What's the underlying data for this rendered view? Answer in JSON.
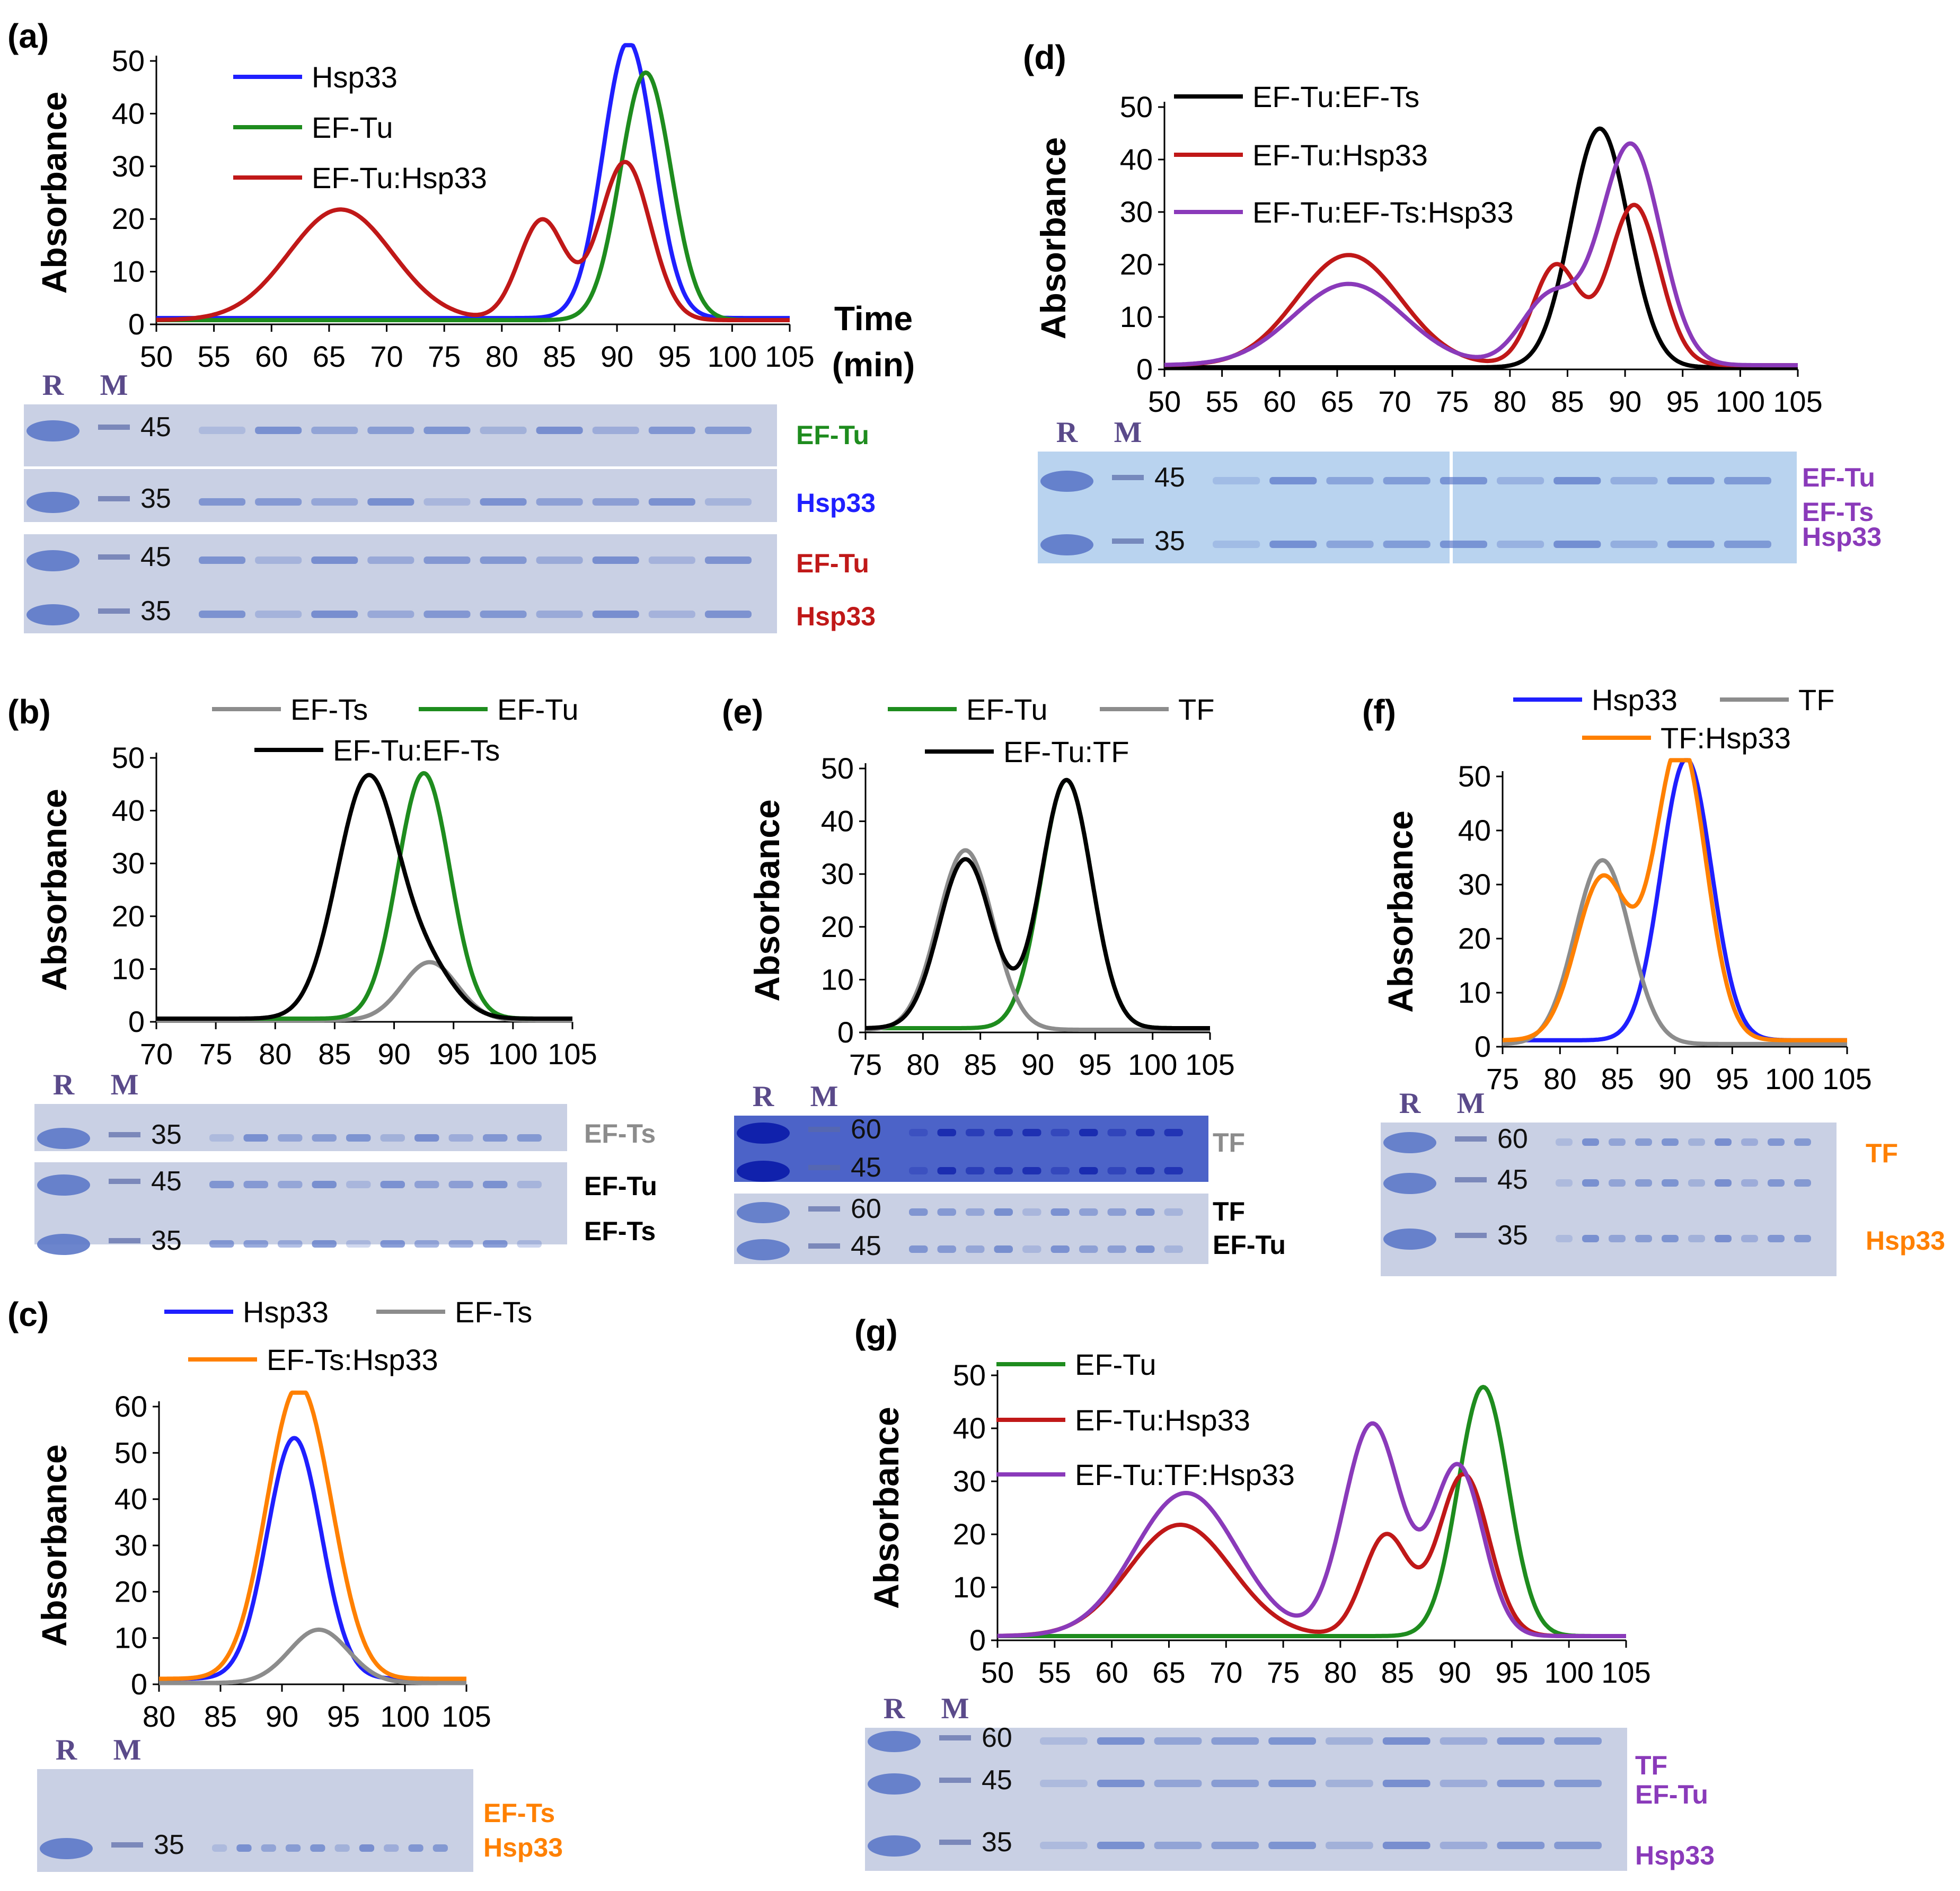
{
  "colors": {
    "Hsp33": "#1f1fff",
    "EF-Tu": "#1e8c1e",
    "EF-Ts": "#8c8c8c",
    "TF": "#8c8c8c",
    "EF-Tu:Hsp33": "#c01818",
    "EF-Tu:EF-Ts": "#000000",
    "EF-Tu:EF-Ts:Hsp33": "#8a3aba",
    "EF-Tu:TF": "#000000",
    "TF:Hsp33": "#ff8000",
    "EF-Ts:Hsp33": "#ff8000",
    "EF-Tu:TF:Hsp33": "#8a3aba"
  },
  "ylabel": "Absorbance",
  "chart_data": [
    {
      "id": "a",
      "label": "(a)",
      "type": "line",
      "xlim": [
        50,
        105
      ],
      "ylim": [
        0,
        50
      ],
      "xticks": [
        "50",
        "55",
        "60",
        "65",
        "70",
        "75",
        "80",
        "85",
        "90",
        "95",
        "100",
        "105"
      ],
      "yticks": [
        "0",
        "10",
        "20",
        "30",
        "40",
        "50"
      ],
      "xtitle": [
        "Time",
        "(min)"
      ],
      "series": [
        {
          "name": "Hsp33",
          "color": "#1f1fff",
          "baseline": 1.2,
          "peaks": [
            [
              91,
              52.5,
              2.2
            ]
          ]
        },
        {
          "name": "EF-Tu",
          "color": "#1e8c1e",
          "baseline": 0.8,
          "peaks": [
            [
              92.5,
              47,
              2.2
            ]
          ]
        },
        {
          "name": "EF-Tu:Hsp33",
          "color": "#c01818",
          "baseline": 0.8,
          "peaks": [
            [
              66,
              21,
              4.5
            ],
            [
              83.5,
              19,
              2.0
            ],
            [
              90.7,
              30,
              2.2
            ]
          ]
        }
      ],
      "gels": [
        {
          "labels": [
            {
              "t": "EF-Tu",
              "c": "#1e8c1e"
            }
          ],
          "mw": [
            "45"
          ]
        },
        {
          "labels": [
            {
              "t": "Hsp33",
              "c": "#1f1fff"
            }
          ],
          "mw": [
            "35"
          ]
        },
        {
          "labels": [
            {
              "t": "EF-Tu",
              "c": "#c01818"
            },
            {
              "t": "Hsp33",
              "c": "#c01818"
            }
          ],
          "mw": [
            "45",
            "35"
          ]
        }
      ]
    },
    {
      "id": "b",
      "label": "(b)",
      "type": "line",
      "xlim": [
        70,
        105
      ],
      "ylim": [
        0,
        50
      ],
      "xticks": [
        "70",
        "75",
        "80",
        "85",
        "90",
        "95",
        "100",
        "105"
      ],
      "yticks": [
        "0",
        "10",
        "20",
        "30",
        "40",
        "50"
      ],
      "series": [
        {
          "name": "EF-Ts",
          "color": "#8c8c8c",
          "baseline": 0.3,
          "peaks": [
            [
              93,
              11,
              2.3
            ]
          ]
        },
        {
          "name": "EF-Tu",
          "color": "#1e8c1e",
          "baseline": 0.6,
          "peaks": [
            [
              92.5,
              46.5,
              2.2
            ]
          ]
        },
        {
          "name": "EF-Tu:EF-Ts",
          "color": "#000000",
          "baseline": 0.6,
          "peaks": [
            [
              87.8,
              45.5,
              2.6
            ],
            [
              93,
              8,
              2.3
            ]
          ]
        }
      ],
      "gels": [
        {
          "labels": [
            {
              "t": "EF-Ts",
              "c": "#8c8c8c"
            }
          ],
          "mw": [
            "35"
          ]
        },
        {
          "labels": [
            {
              "t": "EF-Tu",
              "c": "#000000"
            },
            {
              "t": "EF-Ts",
              "c": "#000000"
            }
          ],
          "mw": [
            "45",
            "35"
          ]
        }
      ]
    },
    {
      "id": "c",
      "label": "(c)",
      "type": "line",
      "xlim": [
        80,
        105
      ],
      "ylim": [
        0,
        60
      ],
      "xticks": [
        "80",
        "85",
        "90",
        "95",
        "100",
        "105"
      ],
      "yticks": [
        "0",
        "10",
        "20",
        "30",
        "40",
        "50",
        "60"
      ],
      "series": [
        {
          "name": "Hsp33",
          "color": "#1f1fff",
          "baseline": 1.2,
          "peaks": [
            [
              91,
              52,
              2.2
            ]
          ]
        },
        {
          "name": "EF-Ts",
          "color": "#8c8c8c",
          "baseline": 0.3,
          "peaks": [
            [
              93,
              11.5,
              2.4
            ]
          ]
        },
        {
          "name": "EF-Ts:Hsp33",
          "color": "#ff8000",
          "baseline": 1.2,
          "peaks": [
            [
              91.2,
              61,
              2.5
            ],
            [
              94,
              6,
              2
            ]
          ]
        }
      ],
      "gels": [
        {
          "labels": [
            {
              "t": "EF-Ts",
              "c": "#ff8000"
            },
            {
              "t": "Hsp33",
              "c": "#ff8000"
            }
          ],
          "mw": [
            "35"
          ]
        }
      ]
    },
    {
      "id": "d",
      "label": "(d)",
      "type": "line",
      "xlim": [
        50,
        105
      ],
      "ylim": [
        0,
        50
      ],
      "xticks": [
        "50",
        "55",
        "60",
        "65",
        "70",
        "75",
        "80",
        "85",
        "90",
        "95",
        "100",
        "105"
      ],
      "yticks": [
        "0",
        "10",
        "20",
        "30",
        "40",
        "50"
      ],
      "series": [
        {
          "name": "EF-Tu:EF-Ts",
          "color": "#000000",
          "baseline": 0.4,
          "peaks": [
            [
              87.8,
              45.5,
              2.5
            ]
          ]
        },
        {
          "name": "EF-Tu:Hsp33",
          "color": "#c01818",
          "baseline": 0.8,
          "peaks": [
            [
              66,
              21,
              4.5
            ],
            [
              84,
              19,
              2.0
            ],
            [
              90.8,
              30.5,
              2.2
            ]
          ]
        },
        {
          "name": "EF-Tu:EF-Ts:Hsp33",
          "color": "#8a3aba",
          "baseline": 0.8,
          "peaks": [
            [
              66,
              15.5,
              4.8
            ],
            [
              83.5,
              13,
              2.5
            ],
            [
              90.5,
              42,
              2.6
            ]
          ]
        }
      ],
      "gels": [
        {
          "labels": [
            {
              "t": "EF-Tu",
              "c": "#8a3aba"
            },
            {
              "t": "EF-Ts",
              "c": "#8a3aba"
            },
            {
              "t": "Hsp33",
              "c": "#8a3aba"
            }
          ],
          "mw": [
            "45",
            "35"
          ]
        }
      ]
    },
    {
      "id": "e",
      "label": "(e)",
      "type": "line",
      "xlim": [
        75,
        105
      ],
      "ylim": [
        0,
        50
      ],
      "xticks": [
        "75",
        "80",
        "85",
        "90",
        "95",
        "100",
        "105"
      ],
      "yticks": [
        "0",
        "10",
        "20",
        "30",
        "40",
        "50"
      ],
      "series": [
        {
          "name": "EF-Tu",
          "color": "#1e8c1e",
          "baseline": 0.8,
          "peaks": [
            [
              92.5,
              47,
              2.2
            ]
          ]
        },
        {
          "name": "TF",
          "color": "#8c8c8c",
          "baseline": 0.5,
          "peaks": [
            [
              83.7,
              34,
              2.4
            ]
          ]
        },
        {
          "name": "EF-Tu:TF",
          "color": "#000000",
          "baseline": 0.8,
          "peaks": [
            [
              83.7,
              32,
              2.3
            ],
            [
              92.5,
              47,
              2.2
            ]
          ]
        }
      ],
      "gels": [
        {
          "labels": [
            {
              "t": "TF",
              "c": "#8c8c8c"
            }
          ],
          "mw": [
            "60",
            "45"
          ]
        },
        {
          "labels": [
            {
              "t": "TF",
              "c": "#000000"
            },
            {
              "t": "EF-Tu",
              "c": "#000000"
            }
          ],
          "mw": [
            "60",
            "45"
          ]
        }
      ]
    },
    {
      "id": "f",
      "label": "(f)",
      "type": "line",
      "xlim": [
        75,
        105
      ],
      "ylim": [
        0,
        50
      ],
      "xticks": [
        "75",
        "80",
        "85",
        "90",
        "95",
        "100",
        "105"
      ],
      "yticks": [
        "0",
        "10",
        "20",
        "30",
        "40",
        "50"
      ],
      "series": [
        {
          "name": "Hsp33",
          "color": "#1f1fff",
          "baseline": 1.2,
          "peaks": [
            [
              91,
              52,
              2.2
            ]
          ]
        },
        {
          "name": "TF",
          "color": "#8c8c8c",
          "baseline": 0.5,
          "peaks": [
            [
              83.7,
              34,
              2.4
            ]
          ]
        },
        {
          "name": "TF:Hsp33",
          "color": "#ff8000",
          "baseline": 1.2,
          "peaks": [
            [
              83.7,
              30,
              2.3
            ],
            [
              90.5,
              55,
              2.2
            ]
          ]
        }
      ],
      "gels": [
        {
          "labels": [
            {
              "t": "TF",
              "c": "#ff8000"
            },
            {
              "t": "Hsp33",
              "c": "#ff8000"
            }
          ],
          "mw": [
            "60",
            "45",
            "35"
          ]
        }
      ]
    },
    {
      "id": "g",
      "label": "(g)",
      "type": "line",
      "xlim": [
        50,
        105
      ],
      "ylim": [
        0,
        50
      ],
      "xticks": [
        "50",
        "55",
        "60",
        "65",
        "70",
        "75",
        "80",
        "85",
        "90",
        "95",
        "100",
        "105"
      ],
      "yticks": [
        "0",
        "10",
        "20",
        "30",
        "40",
        "50"
      ],
      "series": [
        {
          "name": "EF-Tu",
          "color": "#1e8c1e",
          "baseline": 0.8,
          "peaks": [
            [
              92.5,
              47,
              2.2
            ]
          ]
        },
        {
          "name": "EF-Tu:Hsp33",
          "color": "#c01818",
          "baseline": 0.8,
          "peaks": [
            [
              66,
              21,
              4.5
            ],
            [
              84,
              19,
              2.0
            ],
            [
              90.8,
              30.5,
              2.2
            ]
          ]
        },
        {
          "name": "EF-Tu:TF:Hsp33",
          "color": "#8a3aba",
          "baseline": 0.8,
          "peaks": [
            [
              66.5,
              27,
              4.5
            ],
            [
              82.8,
              40,
              2.5
            ],
            [
              90.3,
              32,
              2.2
            ]
          ]
        }
      ],
      "gels": [
        {
          "labels": [
            {
              "t": "TF",
              "c": "#8a3aba"
            },
            {
              "t": "EF-Tu",
              "c": "#8a3aba"
            },
            {
              "t": "Hsp33",
              "c": "#8a3aba"
            }
          ],
          "mw": [
            "60",
            "45",
            "35"
          ]
        }
      ]
    }
  ],
  "gel_lane_labels": {
    "R": "R",
    "M": "M"
  }
}
